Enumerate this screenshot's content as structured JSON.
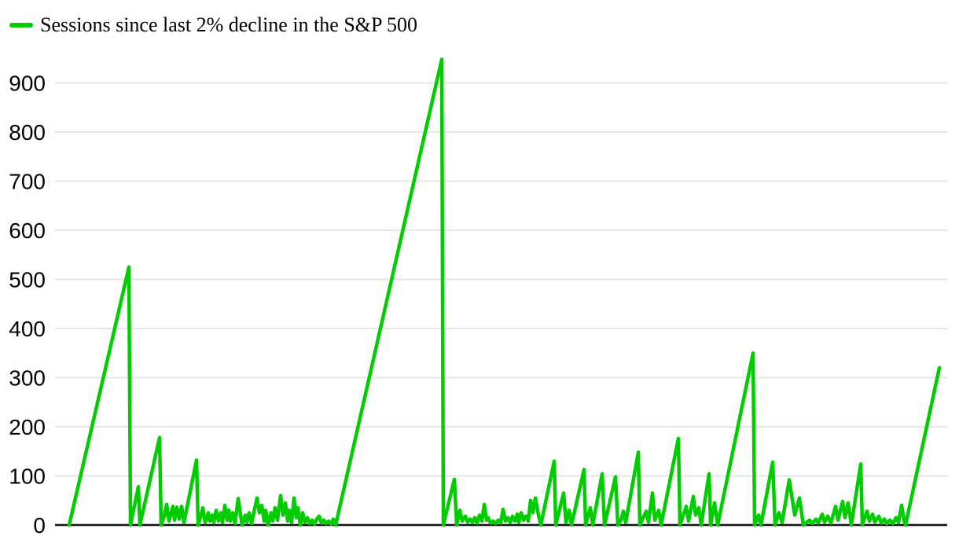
{
  "colors": {
    "line": "#00cc00",
    "grid": "#e6e6e6",
    "axis": "#111111",
    "text": "#000000",
    "background": "#ffffff"
  },
  "chart_data": {
    "type": "line",
    "legend_position": "top-left",
    "grid": "horizontal gridlines every 100",
    "legend": [
      {
        "label": "Sessions since last 2% decline in the S&P 500",
        "color": "#00cc00"
      }
    ],
    "ylabel": "",
    "xlabel": "",
    "y_ticks": [
      0,
      100,
      200,
      300,
      400,
      500,
      600,
      700,
      800,
      900
    ],
    "ylim": [
      0,
      975
    ],
    "x_axis_tick_labels_visible": false,
    "series": [
      {
        "name": "Sessions since last 2% decline in the S&P 500",
        "color": "#00cc00",
        "y_unit": "sessions",
        "x_unit": "image-x-pixel (time axis, tick labels cropped out of view)",
        "points": [
          [
            88,
            0
          ],
          [
            164,
            525
          ],
          [
            166,
            0
          ],
          [
            176,
            78
          ],
          [
            178,
            0
          ],
          [
            203,
            178
          ],
          [
            205,
            0
          ],
          [
            209,
            18
          ],
          [
            212,
            42
          ],
          [
            215,
            8
          ],
          [
            220,
            38
          ],
          [
            222,
            10
          ],
          [
            225,
            36
          ],
          [
            228,
            12
          ],
          [
            231,
            38
          ],
          [
            234,
            5
          ],
          [
            250,
            132
          ],
          [
            252,
            0
          ],
          [
            256,
            22
          ],
          [
            258,
            35
          ],
          [
            261,
            5
          ],
          [
            265,
            25
          ],
          [
            267,
            8
          ],
          [
            270,
            20
          ],
          [
            272,
            5
          ],
          [
            275,
            30
          ],
          [
            278,
            8
          ],
          [
            281,
            25
          ],
          [
            283,
            5
          ],
          [
            286,
            40
          ],
          [
            289,
            10
          ],
          [
            291,
            30
          ],
          [
            293,
            8
          ],
          [
            296,
            25
          ],
          [
            299,
            3
          ],
          [
            303,
            54
          ],
          [
            308,
            0
          ],
          [
            312,
            20
          ],
          [
            314,
            6
          ],
          [
            317,
            25
          ],
          [
            320,
            3
          ],
          [
            327,
            55
          ],
          [
            330,
            25
          ],
          [
            333,
            40
          ],
          [
            336,
            8
          ],
          [
            338,
            30
          ],
          [
            341,
            0
          ],
          [
            345,
            25
          ],
          [
            347,
            8
          ],
          [
            350,
            35
          ],
          [
            353,
            10
          ],
          [
            357,
            60
          ],
          [
            360,
            20
          ],
          [
            363,
            45
          ],
          [
            366,
            8
          ],
          [
            368,
            30
          ],
          [
            371,
            5
          ],
          [
            374,
            55
          ],
          [
            377,
            15
          ],
          [
            379,
            35
          ],
          [
            382,
            0
          ],
          [
            385,
            25
          ],
          [
            388,
            5
          ],
          [
            391,
            15
          ],
          [
            394,
            3
          ],
          [
            397,
            10
          ],
          [
            400,
            2
          ],
          [
            403,
            12
          ],
          [
            406,
            18
          ],
          [
            409,
            4
          ],
          [
            412,
            10
          ],
          [
            415,
            3
          ],
          [
            418,
            8
          ],
          [
            421,
            2
          ],
          [
            424,
            12
          ],
          [
            427,
            0
          ],
          [
            562,
            948
          ],
          [
            564,
            0
          ],
          [
            578,
            93
          ],
          [
            581,
            0
          ],
          [
            585,
            30
          ],
          [
            588,
            8
          ],
          [
            592,
            18
          ],
          [
            595,
            6
          ],
          [
            598,
            12
          ],
          [
            601,
            5
          ],
          [
            604,
            15
          ],
          [
            607,
            4
          ],
          [
            610,
            20
          ],
          [
            613,
            8
          ],
          [
            616,
            42
          ],
          [
            619,
            10
          ],
          [
            621,
            15
          ],
          [
            624,
            4
          ],
          [
            627,
            8
          ],
          [
            630,
            3
          ],
          [
            634,
            10
          ],
          [
            637,
            4
          ],
          [
            640,
            32
          ],
          [
            643,
            8
          ],
          [
            646,
            15
          ],
          [
            649,
            5
          ],
          [
            652,
            18
          ],
          [
            655,
            8
          ],
          [
            658,
            22
          ],
          [
            660,
            5
          ],
          [
            663,
            25
          ],
          [
            666,
            10
          ],
          [
            669,
            18
          ],
          [
            672,
            8
          ],
          [
            675,
            50
          ],
          [
            678,
            25
          ],
          [
            681,
            55
          ],
          [
            685,
            20
          ],
          [
            688,
            0
          ],
          [
            705,
            130
          ],
          [
            707,
            0
          ],
          [
            717,
            65
          ],
          [
            720,
            5
          ],
          [
            724,
            30
          ],
          [
            727,
            0
          ],
          [
            743,
            113
          ],
          [
            745,
            0
          ],
          [
            751,
            35
          ],
          [
            754,
            0
          ],
          [
            766,
            104
          ],
          [
            769,
            0
          ],
          [
            783,
            98
          ],
          [
            786,
            0
          ],
          [
            790,
            10
          ],
          [
            793,
            28
          ],
          [
            796,
            5
          ],
          [
            812,
            148
          ],
          [
            814,
            0
          ],
          [
            822,
            28
          ],
          [
            825,
            6
          ],
          [
            830,
            65
          ],
          [
            833,
            10
          ],
          [
            838,
            30
          ],
          [
            841,
            0
          ],
          [
            863,
            176
          ],
          [
            865,
            0
          ],
          [
            873,
            38
          ],
          [
            876,
            8
          ],
          [
            882,
            58
          ],
          [
            885,
            20
          ],
          [
            889,
            35
          ],
          [
            892,
            0
          ],
          [
            902,
            104
          ],
          [
            904,
            0
          ],
          [
            909,
            45
          ],
          [
            913,
            0
          ],
          [
            958,
            350
          ],
          [
            960,
            0
          ],
          [
            965,
            20
          ],
          [
            968,
            0
          ],
          [
            983,
            128
          ],
          [
            986,
            0
          ],
          [
            991,
            25
          ],
          [
            995,
            5
          ],
          [
            1004,
            92
          ],
          [
            1011,
            20
          ],
          [
            1017,
            55
          ],
          [
            1022,
            0
          ],
          [
            1030,
            10
          ],
          [
            1033,
            3
          ],
          [
            1038,
            12
          ],
          [
            1041,
            4
          ],
          [
            1046,
            22
          ],
          [
            1049,
            6
          ],
          [
            1053,
            18
          ],
          [
            1057,
            4
          ],
          [
            1063,
            38
          ],
          [
            1066,
            10
          ],
          [
            1072,
            48
          ],
          [
            1075,
            15
          ],
          [
            1079,
            45
          ],
          [
            1083,
            0
          ],
          [
            1095,
            124
          ],
          [
            1097,
            0
          ],
          [
            1103,
            28
          ],
          [
            1106,
            8
          ],
          [
            1110,
            22
          ],
          [
            1113,
            6
          ],
          [
            1118,
            18
          ],
          [
            1121,
            4
          ],
          [
            1125,
            12
          ],
          [
            1128,
            3
          ],
          [
            1132,
            10
          ],
          [
            1136,
            3
          ],
          [
            1140,
            15
          ],
          [
            1143,
            5
          ],
          [
            1147,
            40
          ],
          [
            1150,
            10
          ],
          [
            1152,
            0
          ],
          [
            1195,
            320
          ]
        ]
      }
    ]
  }
}
